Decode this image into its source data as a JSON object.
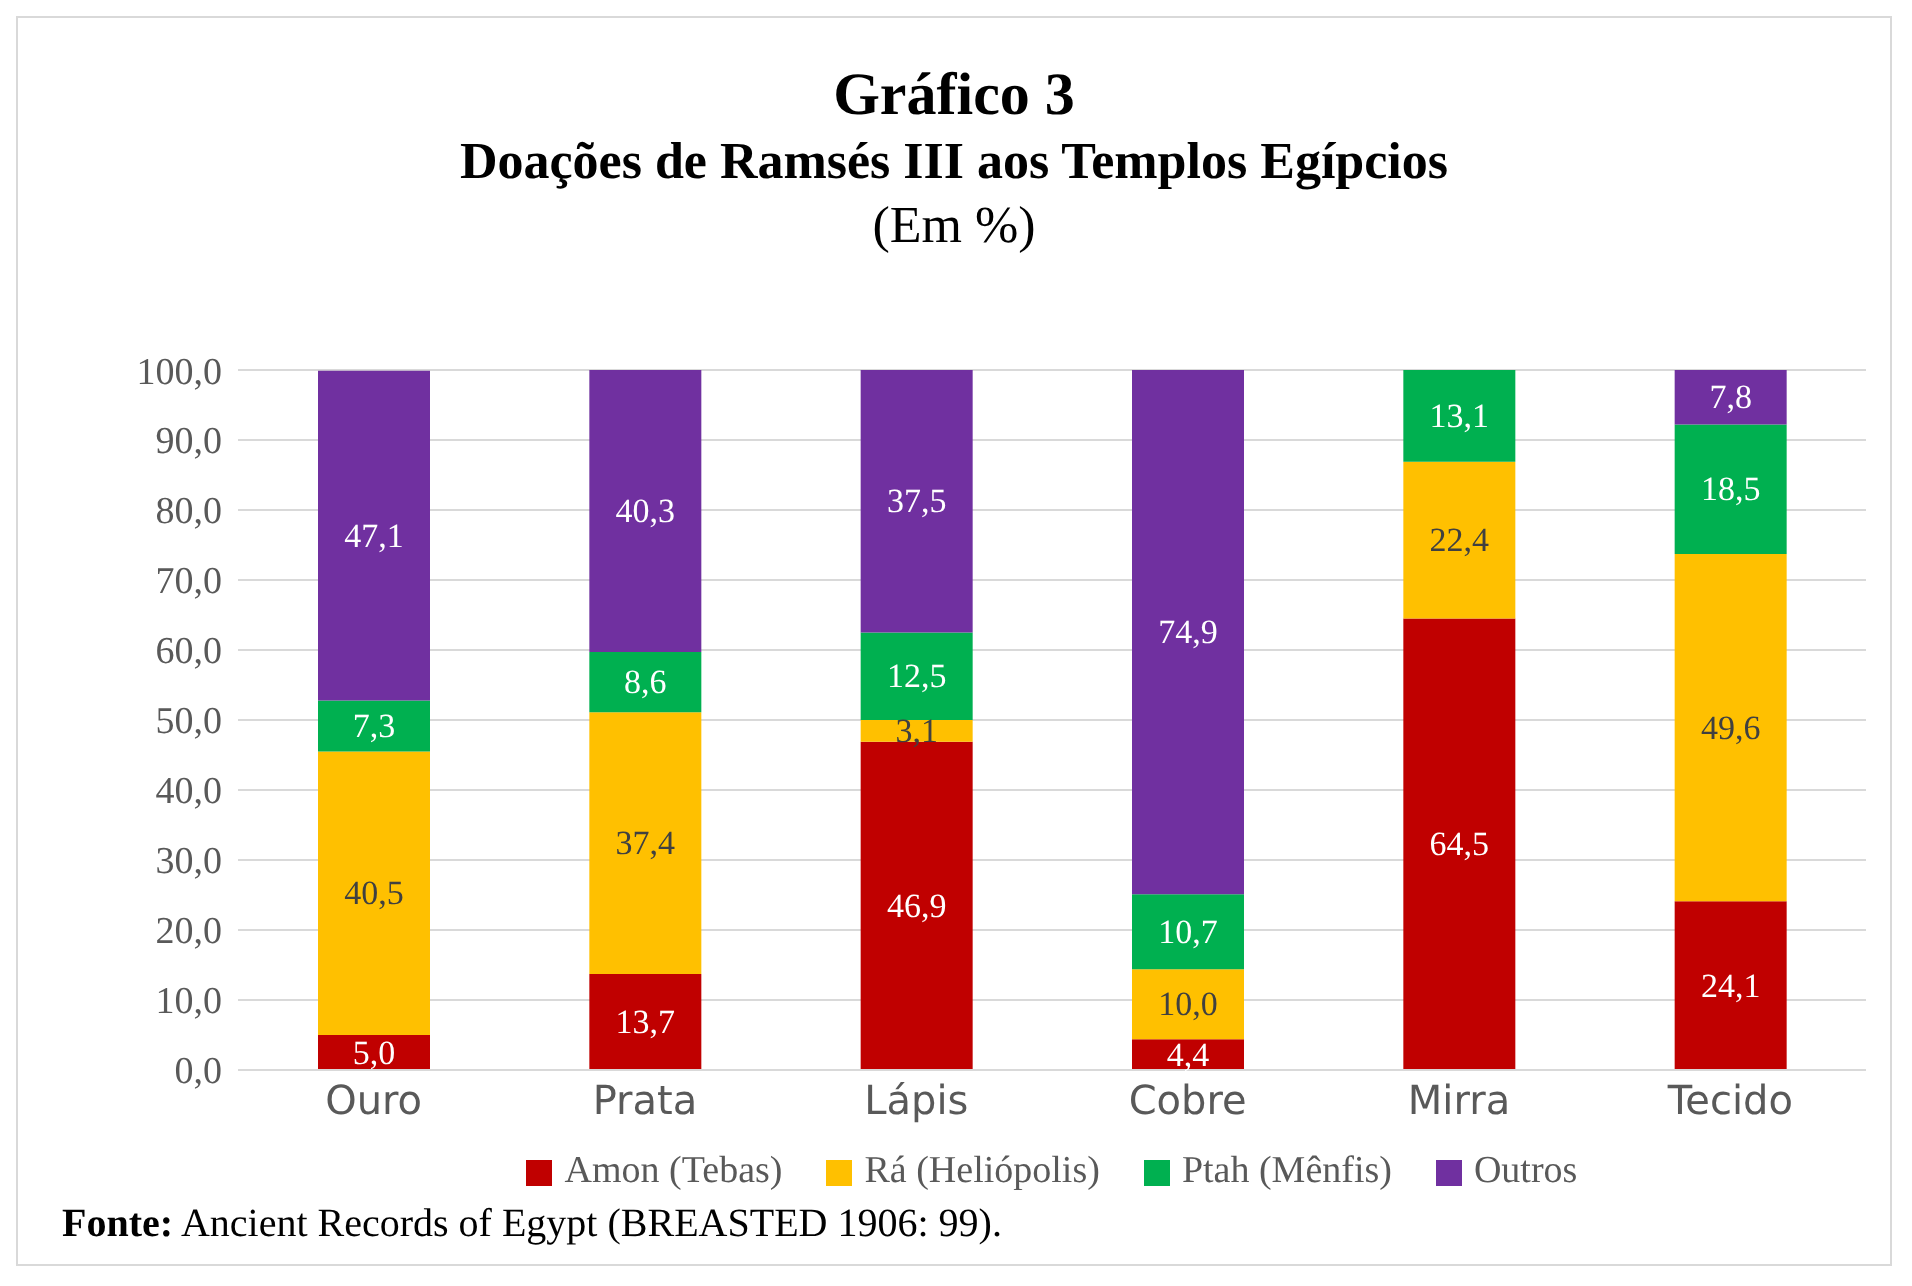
{
  "chart_data": {
    "type": "bar",
    "title": "Gráfico 3",
    "subtitle": "Doações de Ramsés III aos Templos Egípcios",
    "ylabel": "(Em %)",
    "stacked": true,
    "categories": [
      "Ouro",
      "Prata",
      "Lápis",
      "Cobre",
      "Mirra",
      "Tecido"
    ],
    "series": [
      {
        "name": "Amon (Tebas)",
        "color": "#c00000",
        "values": [
          5.0,
          13.7,
          46.9,
          4.4,
          64.5,
          24.1
        ],
        "value_labels": [
          "5,0",
          "13,7",
          "46,9",
          "4,4",
          "64,5",
          "24,1"
        ]
      },
      {
        "name": "Rá (Heliópolis)",
        "color": "#ffc000",
        "values": [
          40.5,
          37.4,
          3.1,
          10.0,
          22.4,
          49.6
        ],
        "value_labels": [
          "40,5",
          "37,4",
          "3,1",
          "10,0",
          "22,4",
          "49,6"
        ]
      },
      {
        "name": "Ptah (Mênfis)",
        "color": "#00b050",
        "values": [
          7.3,
          8.6,
          12.5,
          10.7,
          13.1,
          18.5
        ],
        "value_labels": [
          "7,3",
          "8,6",
          "12,5",
          "10,7",
          "13,1",
          "18,5"
        ]
      },
      {
        "name": "Outros",
        "color": "#7030a0",
        "values": [
          47.1,
          40.3,
          37.5,
          74.9,
          null,
          7.8
        ],
        "value_labels": [
          "47,1",
          "40,3",
          "37,5",
          "74,9",
          null,
          "7,8"
        ]
      }
    ],
    "ylim": [
      0,
      100
    ],
    "yticks": [
      {
        "value": 0,
        "label": "0,0"
      },
      {
        "value": 10,
        "label": "10,0"
      },
      {
        "value": 20,
        "label": "20,0"
      },
      {
        "value": 30,
        "label": "30,0"
      },
      {
        "value": 40,
        "label": "40,0"
      },
      {
        "value": 50,
        "label": "50,0"
      },
      {
        "value": 60,
        "label": "60,0"
      },
      {
        "value": 70,
        "label": "70,0"
      },
      {
        "value": 80,
        "label": "80,0"
      },
      {
        "value": 90,
        "label": "90,0"
      },
      {
        "value": 100,
        "label": "100,0"
      }
    ],
    "grid": "y",
    "legend": "bottom",
    "annotations": [
      "Fonte:  Ancient Records of Egypt (BREASTED 1906: 99)."
    ]
  }
}
